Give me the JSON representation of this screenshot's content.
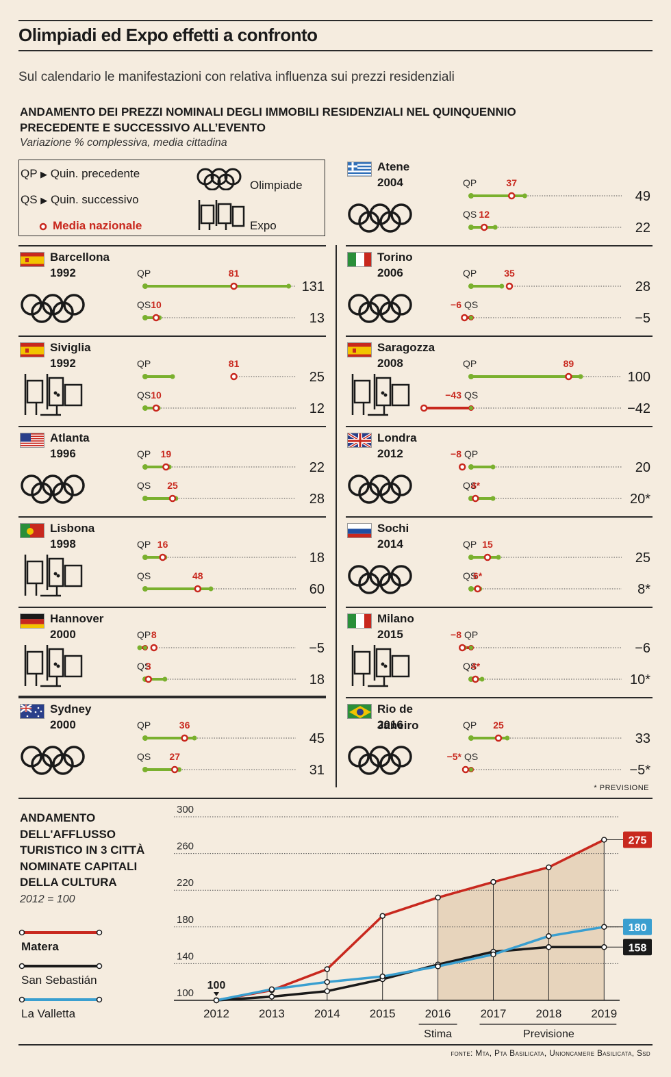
{
  "header": {
    "title": "Olimpiadi ed Expo effetti a confronto",
    "subtitle": "Sul calendario le manifestazioni con relativa influenza sui prezzi residenziali",
    "section_title_1": "ANDAMENTO DEI PREZZI NOMINALI DEGLI IMMOBILI RESIDENZIALI NEL QUINQUENNIO",
    "section_title_2": "PRECEDENTE E SUCCESSIVO ALL’EVENTO",
    "section_note": "Variazione % complessiva, media cittadina"
  },
  "legend": {
    "qp": "QP",
    "qp_text": "Quin. precedente",
    "qs": "QS",
    "qs_text": "Quin. successivo",
    "media": "Media nazionale",
    "olimpiade": "Olimpiade",
    "expo": "Expo"
  },
  "colors": {
    "green": "#7ab02e",
    "red": "#c8281e",
    "blue": "#3a9fd0",
    "black": "#1a1a1a",
    "bg": "#f5ecdf",
    "shade": "#e6d1b8"
  },
  "events": [
    {
      "city": "Barcellona",
      "year": "1992",
      "type": "olympics",
      "flag": "spain",
      "qp_city": 131,
      "qp_nat": 81,
      "qp_nat_label": "81",
      "qp_end": "131",
      "qs_city": 13,
      "qs_nat": 10,
      "qs_nat_label": "10",
      "qs_end": "13"
    },
    {
      "city": "Siviglia",
      "year": "1992",
      "type": "expo",
      "flag": "spain",
      "qp_city": 25,
      "qp_nat": 81,
      "qp_nat_label": "81",
      "qp_end": "25",
      "qs_city": 12,
      "qs_nat": 10,
      "qs_nat_label": "10",
      "qs_end": "12"
    },
    {
      "city": "Atlanta",
      "year": "1996",
      "type": "olympics",
      "flag": "usa",
      "qp_city": 22,
      "qp_nat": 19,
      "qp_nat_label": "19",
      "qp_end": "22",
      "qs_city": 28,
      "qs_nat": 25,
      "qs_nat_label": "25",
      "qs_end": "28"
    },
    {
      "city": "Lisbona",
      "year": "1998",
      "type": "expo",
      "flag": "portugal",
      "qp_city": 18,
      "qp_nat": 16,
      "qp_nat_label": "16",
      "qp_end": "18",
      "qs_city": 60,
      "qs_nat": 48,
      "qs_nat_label": "48",
      "qs_end": "60"
    },
    {
      "city": "Hannover",
      "year": "2000",
      "type": "expo",
      "flag": "germany",
      "qp_city": -5,
      "qp_nat": 8,
      "qp_nat_label": "8",
      "qp_end": "−5",
      "qs_city": 18,
      "qs_nat": 3,
      "qs_nat_label": "3",
      "qs_end": "18"
    },
    {
      "city": "Sydney",
      "year": "2000",
      "type": "olympics",
      "flag": "australia",
      "qp_city": 45,
      "qp_nat": 36,
      "qp_nat_label": "36",
      "qp_end": "45",
      "qs_city": 31,
      "qs_nat": 27,
      "qs_nat_label": "27",
      "qs_end": "31"
    },
    {
      "city": "Atene",
      "year": "2004",
      "type": "olympics",
      "flag": "greece",
      "qp_city": 49,
      "qp_nat": 37,
      "qp_nat_label": "37",
      "qp_end": "49",
      "qs_city": 22,
      "qs_nat": 12,
      "qs_nat_label": "12",
      "qs_end": "22"
    },
    {
      "city": "Torino",
      "year": "2006",
      "type": "olympics",
      "flag": "italy",
      "qp_city": 28,
      "qp_nat": 35,
      "qp_nat_label": "35",
      "qp_end": "28",
      "qs_city": -5,
      "qs_nat": -6,
      "qs_nat_label": "−6",
      "qs_end": "−5"
    },
    {
      "city": "Saragozza",
      "year": "2008",
      "type": "expo",
      "flag": "spain",
      "qp_city": 100,
      "qp_nat": 89,
      "qp_nat_label": "89",
      "qp_end": "100",
      "qs_city": -42,
      "qs_nat": -43,
      "qs_nat_label": "−43",
      "qs_end": "−42"
    },
    {
      "city": "Londra",
      "year": "2012",
      "type": "olympics",
      "flag": "uk",
      "qp_city": 20,
      "qp_nat": -8,
      "qp_nat_label": "−8",
      "qp_end": "20",
      "qs_city": 20,
      "qs_nat": 4,
      "qs_nat_label": "4*",
      "qs_end": "20*"
    },
    {
      "city": "Sochi",
      "year": "2014",
      "type": "olympics",
      "flag": "russia",
      "qp_city": 25,
      "qp_nat": 15,
      "qp_nat_label": "15",
      "qp_end": "25",
      "qs_city": 8,
      "qs_nat": 6,
      "qs_nat_label": "6*",
      "qs_end": "8*"
    },
    {
      "city": "Milano",
      "year": "2015",
      "type": "expo",
      "flag": "italy",
      "qp_city": -6,
      "qp_nat": -8,
      "qp_nat_label": "−8",
      "qp_end": "−6",
      "qs_city": 10,
      "qs_nat": 4,
      "qs_nat_label": "4*",
      "qs_end": "10*"
    },
    {
      "city": "Rio de Janeiro",
      "year": "2016",
      "type": "olympics",
      "flag": "brazil",
      "qp_city": 33,
      "qp_nat": 25,
      "qp_nat_label": "25",
      "qp_end": "33",
      "qs_city": -5,
      "qs_nat": -5,
      "qs_nat_label": "−5*",
      "qs_end": "−5*"
    }
  ],
  "previsione_note": "* PREVISIONE",
  "tourism": {
    "title_lines": [
      "ANDAMENTO",
      "DELL'AFFLUSSO",
      "TURISTICO IN 3 CITTÀ",
      "NOMINATE CAPITALI",
      "DELLA CULTURA"
    ],
    "note": "2012 = 100",
    "stima_label": "Stima",
    "previsione_label": "Previsione"
  },
  "chart_data": {
    "type": "line",
    "x": [
      "2012",
      "2013",
      "2014",
      "2015",
      "2016",
      "2017",
      "2018",
      "2019"
    ],
    "ylim": [
      100,
      300
    ],
    "yticks": [
      100,
      140,
      180,
      220,
      260,
      300
    ],
    "series": [
      {
        "name": "Matera",
        "color": "#c8281e",
        "values": [
          100,
          111,
          134,
          192,
          212,
          229,
          245,
          275
        ],
        "end_label": "275"
      },
      {
        "name": "San Sebastián",
        "color": "#1a1a1a",
        "values": [
          100,
          104,
          110,
          123,
          139,
          153,
          158,
          158
        ],
        "end_label": "158"
      },
      {
        "name": "La Valletta",
        "color": "#3a9fd0",
        "values": [
          100,
          112,
          120,
          126,
          137,
          150,
          170,
          180
        ],
        "end_label": "180"
      }
    ],
    "start_label": "100"
  },
  "source": "fonte: Mta, Pta Basilicata, Unioncamere Basilicata, Ssd"
}
